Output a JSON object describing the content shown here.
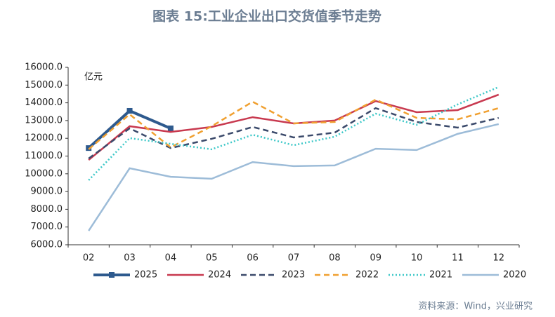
{
  "chart_data": {
    "type": "line",
    "title": "图表 15:工业企业出口交货值季节走势",
    "y_label": "亿元",
    "source": "资料来源：Wind，兴业研究",
    "categories": [
      "02",
      "03",
      "04",
      "05",
      "06",
      "07",
      "08",
      "09",
      "10",
      "11",
      "12"
    ],
    "ylim": [
      6000,
      16000
    ],
    "yticks": [
      {
        "value": 6000,
        "label": "6000.0"
      },
      {
        "value": 7000,
        "label": "7000.0"
      },
      {
        "value": 8000,
        "label": "8000.0"
      },
      {
        "value": 9000,
        "label": "9000.0"
      },
      {
        "value": 10000,
        "label": "10000.0"
      },
      {
        "value": 11000,
        "label": "11000.0"
      },
      {
        "value": 12000,
        "label": "12000.0"
      },
      {
        "value": 13000,
        "label": "13000.0"
      },
      {
        "value": 14000,
        "label": "14000.0"
      },
      {
        "value": 15000,
        "label": "15000.0"
      },
      {
        "value": 16000,
        "label": "16000.0"
      }
    ],
    "legend": "bottom",
    "series": [
      {
        "name": "2025",
        "color": "#2e5a8e",
        "line_style": "solid",
        "line_width": 4,
        "marker": "square",
        "values": [
          11450,
          13550,
          12560,
          null,
          null,
          null,
          null,
          null,
          null,
          null,
          null
        ]
      },
      {
        "name": "2024",
        "color": "#c8394f",
        "line_style": "solid",
        "line_width": 2.5,
        "values": [
          10780,
          12680,
          12360,
          12640,
          13190,
          12840,
          13000,
          14100,
          13470,
          13590,
          14460
        ]
      },
      {
        "name": "2023",
        "color": "#3b4a6b",
        "line_style": "dashed",
        "line_width": 2.5,
        "values": [
          10860,
          12560,
          11450,
          11970,
          12640,
          12050,
          12320,
          13700,
          12920,
          12600,
          13150
        ]
      },
      {
        "name": "2022",
        "color": "#f0a030",
        "line_style": "dashed",
        "line_width": 2.5,
        "values": [
          11380,
          13350,
          11490,
          12680,
          14060,
          12840,
          12920,
          14180,
          13150,
          13070,
          13700
        ]
      },
      {
        "name": "2021",
        "color": "#3cc8c8",
        "line_style": "dotted",
        "line_width": 2.5,
        "values": [
          9640,
          12010,
          11690,
          11380,
          12200,
          11610,
          12090,
          13390,
          12760,
          13910,
          14890
        ]
      },
      {
        "name": "2020",
        "color": "#9dbcd8",
        "line_style": "solid",
        "line_width": 2.5,
        "values": [
          6790,
          10310,
          9830,
          9720,
          10660,
          10430,
          10470,
          11410,
          11340,
          12250,
          12800
        ]
      }
    ]
  }
}
